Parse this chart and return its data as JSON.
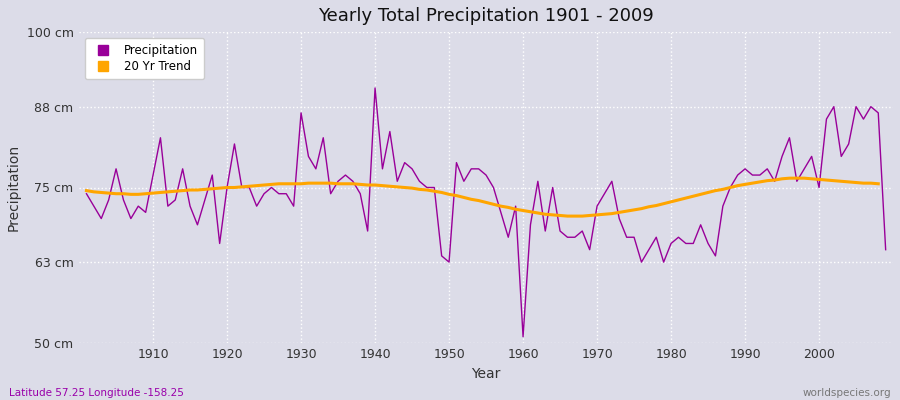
{
  "title": "Yearly Total Precipitation 1901 - 2009",
  "xlabel": "Year",
  "ylabel": "Precipitation",
  "subtitle": "Latitude 57.25 Longitude -158.25",
  "watermark": "worldspecies.org",
  "ylim": [
    50,
    100
  ],
  "yticks": [
    50,
    63,
    75,
    88,
    100
  ],
  "ytick_labels": [
    "50 cm",
    "63 cm",
    "75 cm",
    "88 cm",
    "100 cm"
  ],
  "xlim": [
    1901,
    2009
  ],
  "xticks": [
    1910,
    1920,
    1930,
    1940,
    1950,
    1960,
    1970,
    1980,
    1990,
    2000
  ],
  "precip_color": "#990099",
  "trend_color": "#FFA500",
  "bg_color": "#DCDCE8",
  "plot_bg": "#DCDCE8",
  "years": [
    1901,
    1902,
    1903,
    1904,
    1905,
    1906,
    1907,
    1908,
    1909,
    1910,
    1911,
    1912,
    1913,
    1914,
    1915,
    1916,
    1917,
    1918,
    1919,
    1920,
    1921,
    1922,
    1923,
    1924,
    1925,
    1926,
    1927,
    1928,
    1929,
    1930,
    1931,
    1932,
    1933,
    1934,
    1935,
    1936,
    1937,
    1938,
    1939,
    1940,
    1941,
    1942,
    1943,
    1944,
    1945,
    1946,
    1947,
    1948,
    1949,
    1950,
    1951,
    1952,
    1953,
    1954,
    1955,
    1956,
    1957,
    1958,
    1959,
    1960,
    1961,
    1962,
    1963,
    1964,
    1965,
    1966,
    1967,
    1968,
    1969,
    1970,
    1971,
    1972,
    1973,
    1974,
    1975,
    1976,
    1977,
    1978,
    1979,
    1980,
    1981,
    1982,
    1983,
    1984,
    1985,
    1986,
    1987,
    1988,
    1989,
    1990,
    1991,
    1992,
    1993,
    1994,
    1995,
    1996,
    1997,
    1998,
    1999,
    2000,
    2001,
    2002,
    2003,
    2004,
    2005,
    2006,
    2007,
    2008,
    2009
  ],
  "precip": [
    74,
    72,
    70,
    73,
    78,
    73,
    70,
    72,
    71,
    77,
    83,
    72,
    73,
    78,
    72,
    69,
    73,
    77,
    66,
    75,
    82,
    75,
    75,
    72,
    74,
    75,
    74,
    74,
    72,
    87,
    80,
    78,
    83,
    74,
    76,
    77,
    76,
    74,
    68,
    91,
    78,
    84,
    76,
    79,
    78,
    76,
    75,
    75,
    64,
    63,
    79,
    76,
    78,
    78,
    77,
    75,
    71,
    67,
    72,
    51,
    69,
    76,
    68,
    75,
    68,
    67,
    67,
    68,
    65,
    72,
    74,
    76,
    70,
    67,
    67,
    63,
    65,
    67,
    63,
    66,
    67,
    66,
    66,
    69,
    66,
    64,
    72,
    75,
    77,
    78,
    77,
    77,
    78,
    76,
    80,
    83,
    76,
    78,
    80,
    75,
    86,
    88,
    80,
    82,
    88,
    86,
    88,
    87,
    65
  ],
  "trend": [
    74.5,
    74.3,
    74.2,
    74.1,
    74.0,
    74.0,
    73.9,
    73.9,
    74.0,
    74.1,
    74.2,
    74.3,
    74.4,
    74.5,
    74.6,
    74.6,
    74.7,
    74.8,
    74.9,
    75.0,
    75.0,
    75.1,
    75.2,
    75.3,
    75.4,
    75.5,
    75.6,
    75.6,
    75.6,
    75.6,
    75.7,
    75.7,
    75.7,
    75.7,
    75.6,
    75.6,
    75.6,
    75.5,
    75.4,
    75.4,
    75.3,
    75.2,
    75.1,
    75.0,
    74.9,
    74.7,
    74.6,
    74.4,
    74.2,
    73.9,
    73.7,
    73.4,
    73.1,
    72.9,
    72.6,
    72.3,
    72.0,
    71.8,
    71.5,
    71.3,
    71.1,
    70.9,
    70.7,
    70.6,
    70.5,
    70.4,
    70.4,
    70.4,
    70.5,
    70.6,
    70.7,
    70.8,
    71.0,
    71.2,
    71.4,
    71.6,
    71.9,
    72.1,
    72.4,
    72.7,
    73.0,
    73.3,
    73.6,
    73.9,
    74.2,
    74.5,
    74.7,
    75.0,
    75.3,
    75.5,
    75.7,
    75.9,
    76.1,
    76.2,
    76.4,
    76.5,
    76.5,
    76.5,
    76.4,
    76.3,
    76.2,
    76.1,
    76.0,
    75.9,
    75.8,
    75.7,
    75.7,
    75.6,
    null
  ]
}
